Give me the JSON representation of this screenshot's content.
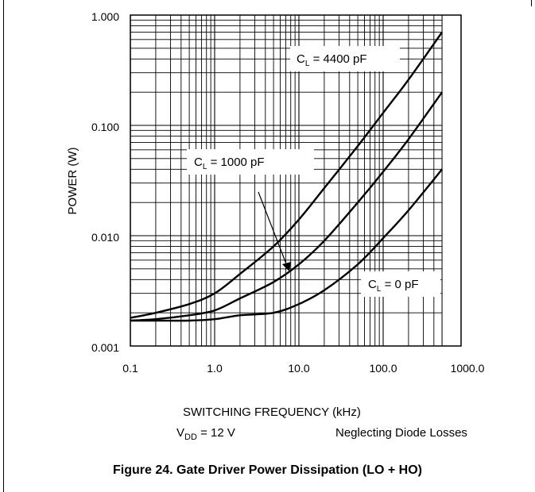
{
  "chart_data": {
    "type": "line",
    "xscale": "log",
    "yscale": "log",
    "xlim": [
      0.1,
      500
    ],
    "ylim": [
      0.001,
      1.0
    ],
    "grid": true,
    "ylabel": "POWER (W)",
    "xlabel": "SWITCHING FREQUENCY (kHz)",
    "x_ticks": [
      "0.1",
      "1.0",
      "10.0",
      "100.0",
      "1000.0"
    ],
    "y_ticks": [
      "1.000",
      "0.100",
      "0.010",
      "0.001"
    ],
    "series": [
      {
        "name": "C_L = 4400 pF",
        "x": [
          0.1,
          0.2,
          0.5,
          1,
          2,
          5,
          10,
          20,
          50,
          100,
          200,
          500
        ],
        "y": [
          0.0018,
          0.002,
          0.0024,
          0.003,
          0.0045,
          0.008,
          0.014,
          0.027,
          0.065,
          0.13,
          0.26,
          0.7
        ]
      },
      {
        "name": "C_L = 1000 pF",
        "x": [
          0.1,
          0.2,
          0.5,
          1,
          2,
          5,
          10,
          20,
          50,
          100,
          200,
          500
        ],
        "y": [
          0.0017,
          0.00175,
          0.0019,
          0.0021,
          0.0027,
          0.0038,
          0.0055,
          0.009,
          0.02,
          0.038,
          0.075,
          0.2
        ]
      },
      {
        "name": "C_L = 0 pF",
        "x": [
          0.1,
          0.2,
          0.5,
          1,
          2,
          5,
          10,
          20,
          50,
          100,
          200,
          500
        ],
        "y": [
          0.0017,
          0.0017,
          0.0017,
          0.00175,
          0.0019,
          0.002,
          0.0024,
          0.0032,
          0.0055,
          0.0095,
          0.017,
          0.04
        ]
      }
    ],
    "annotations": {
      "cl_4400_text": "4400 pF",
      "cl_1000_text": "1000 pF",
      "cl_0_text": "0 pF",
      "c_letter": "C",
      "l_sub": "L",
      "eq": " = "
    }
  },
  "conditions": {
    "vdd_main": "V",
    "vdd_sub": "DD",
    "vdd_value": " = 12 V",
    "diode": "Neglecting Diode Losses"
  },
  "caption": "Figure 24. Gate Driver Power Dissipation (LO + HO)"
}
